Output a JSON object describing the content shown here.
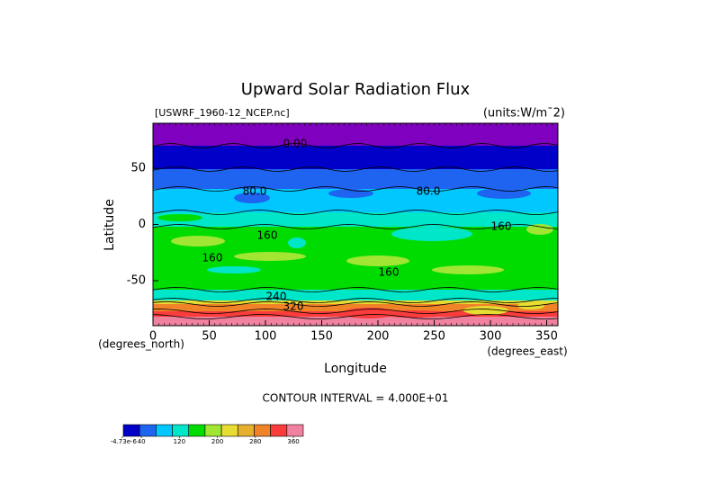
{
  "chart_data": {
    "type": "contour",
    "title": "Upward Solar Radiation Flux",
    "file_label": "[USWRF_1960-12_NCEP.nc]",
    "units_label": "(units:W/m¯2)",
    "x_label": "Longitude",
    "y_label": "Latitude",
    "x_units": "(degrees_east)",
    "y_units": "(degrees_north)",
    "xlim": [
      0,
      360
    ],
    "xticks": [
      0,
      50,
      100,
      150,
      200,
      250,
      300,
      350
    ],
    "ylim": [
      -90,
      90
    ],
    "yticks": [
      -50,
      0,
      50
    ],
    "contour_labels": [
      "0.00",
      "80.0",
      "80.0",
      "160",
      "160",
      "160",
      "160",
      "240",
      "320"
    ],
    "footer": "CONTOUR INTERVAL = 4.000E+01",
    "colorbar": {
      "colors": [
        "#0000c8",
        "#1e64f0",
        "#00c8ff",
        "#00e6c8",
        "#00dc00",
        "#a0e632",
        "#e6dc32",
        "#e6af2d",
        "#f08228",
        "#fa3c3c",
        "#f0829f"
      ],
      "ticks": [
        {
          "value": -4.73e-06,
          "label": "-4.73e-6"
        },
        40,
        120,
        200,
        280,
        360
      ]
    }
  }
}
